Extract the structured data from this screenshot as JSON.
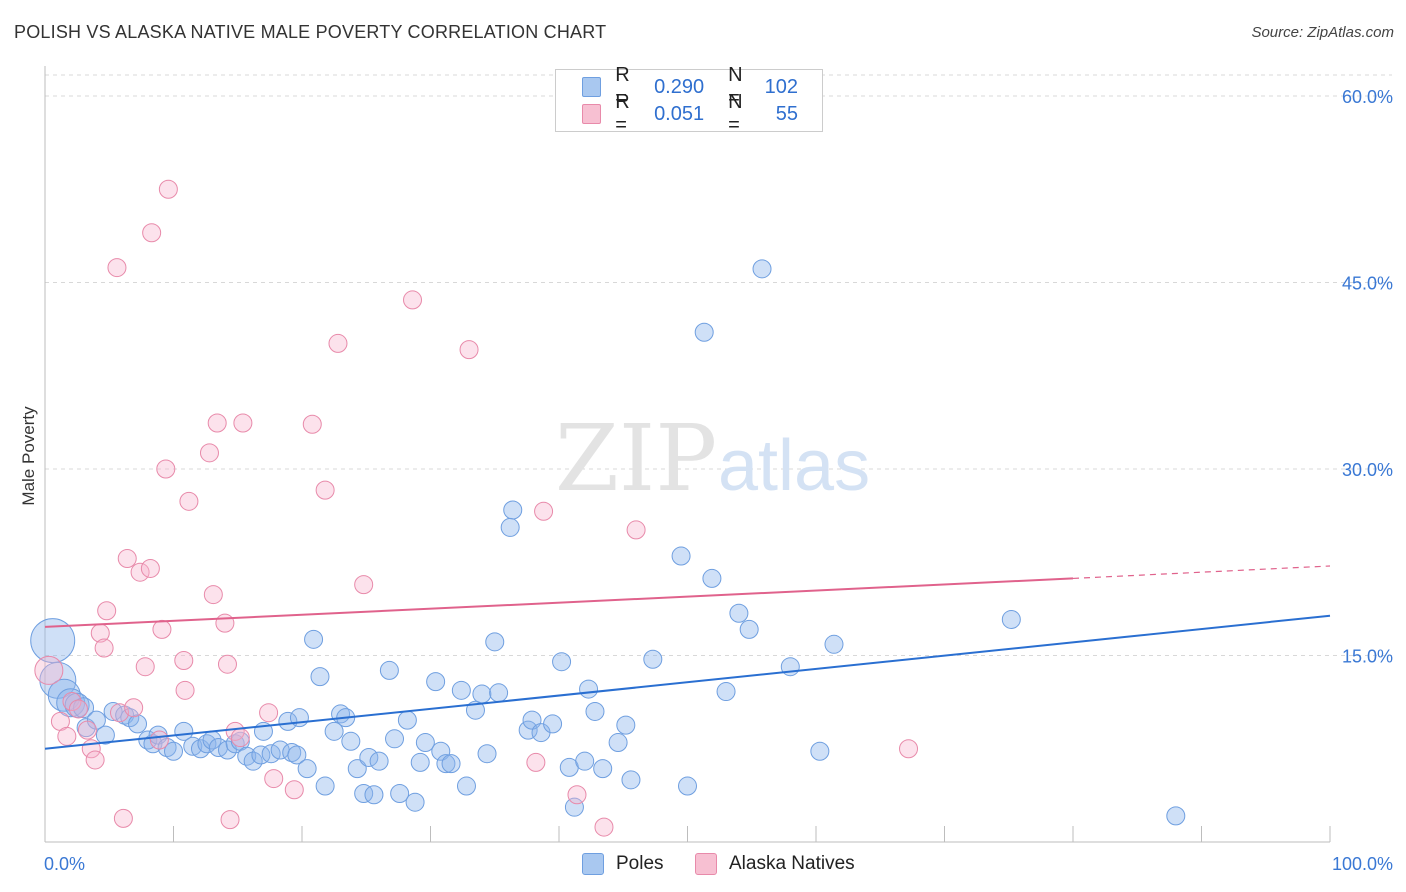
{
  "title": "POLISH VS ALASKA NATIVE MALE POVERTY CORRELATION CHART",
  "source": "Source: ZipAtlas.com",
  "watermark": {
    "zip": "ZIP",
    "atlas": "atlas"
  },
  "legend": {
    "rows": [
      {
        "r_label": "R =",
        "r_value": "0.290",
        "n_label": "N =",
        "n_value": "102",
        "color": "#a9c8f0",
        "border": "#6f9fe0"
      },
      {
        "r_label": "R =",
        "r_value": "0.051",
        "n_label": "N =",
        "n_value": "55",
        "color": "#f7c0d2",
        "border": "#e88aaa"
      }
    ]
  },
  "bottom_legend": [
    {
      "label": "Poles",
      "color": "#a9c8f0",
      "border": "#6f9fe0"
    },
    {
      "label": "Alaska Natives",
      "color": "#f7c0d2",
      "border": "#e88aaa"
    }
  ],
  "chart_data": {
    "type": "scatter",
    "title": "POLISH VS ALASKA NATIVE MALE POVERTY CORRELATION CHART",
    "xlabel": "",
    "ylabel": "Male Poverty",
    "xlim": [
      0,
      100
    ],
    "ylim": [
      0,
      60
    ],
    "x_tick_labels": [
      "0.0%",
      "100.0%"
    ],
    "y_ticks": [
      15,
      30,
      45,
      60
    ],
    "y_tick_labels": [
      "15.0%",
      "30.0%",
      "45.0%",
      "60.0%"
    ],
    "grid": true,
    "legend_position": "top-center",
    "series": [
      {
        "name": "Poles",
        "color": "#7aa8e8",
        "trend": {
          "x": [
            0,
            100
          ],
          "y": [
            7.5,
            18.2
          ],
          "color": "#2a6fd1"
        },
        "points": [
          {
            "x": 0.6,
            "y": 16.2,
            "s": 22
          },
          {
            "x": 1.0,
            "y": 13.0,
            "s": 18
          },
          {
            "x": 1.5,
            "y": 11.8,
            "s": 16
          },
          {
            "x": 2.0,
            "y": 11.2,
            "s": 14
          },
          {
            "x": 2.5,
            "y": 11.0,
            "s": 12
          },
          {
            "x": 3.0,
            "y": 10.8,
            "s": 10
          },
          {
            "x": 3.2,
            "y": 9.2,
            "s": 9
          },
          {
            "x": 4.0,
            "y": 9.8,
            "s": 9
          },
          {
            "x": 4.7,
            "y": 8.6,
            "s": 9
          },
          {
            "x": 5.3,
            "y": 10.5,
            "s": 9
          },
          {
            "x": 6.2,
            "y": 10.2,
            "s": 9
          },
          {
            "x": 6.6,
            "y": 10.0,
            "s": 9
          },
          {
            "x": 7.2,
            "y": 9.5,
            "s": 9
          },
          {
            "x": 8.0,
            "y": 8.2,
            "s": 9
          },
          {
            "x": 8.4,
            "y": 7.9,
            "s": 9
          },
          {
            "x": 8.8,
            "y": 8.6,
            "s": 9
          },
          {
            "x": 9.5,
            "y": 7.6,
            "s": 9
          },
          {
            "x": 10.0,
            "y": 7.3,
            "s": 9
          },
          {
            "x": 10.8,
            "y": 8.9,
            "s": 9
          },
          {
            "x": 11.5,
            "y": 7.7,
            "s": 9
          },
          {
            "x": 12.1,
            "y": 7.5,
            "s": 9
          },
          {
            "x": 12.6,
            "y": 7.9,
            "s": 9
          },
          {
            "x": 13.0,
            "y": 8.2,
            "s": 9
          },
          {
            "x": 13.5,
            "y": 7.6,
            "s": 9
          },
          {
            "x": 14.2,
            "y": 7.4,
            "s": 9
          },
          {
            "x": 14.8,
            "y": 7.9,
            "s": 9
          },
          {
            "x": 15.2,
            "y": 8.1,
            "s": 9
          },
          {
            "x": 15.7,
            "y": 6.9,
            "s": 9
          },
          {
            "x": 16.2,
            "y": 6.5,
            "s": 9
          },
          {
            "x": 16.8,
            "y": 7.0,
            "s": 9
          },
          {
            "x": 17.0,
            "y": 8.9,
            "s": 9
          },
          {
            "x": 17.6,
            "y": 7.1,
            "s": 9
          },
          {
            "x": 18.3,
            "y": 7.4,
            "s": 9
          },
          {
            "x": 18.9,
            "y": 9.7,
            "s": 9
          },
          {
            "x": 19.2,
            "y": 7.2,
            "s": 9
          },
          {
            "x": 19.6,
            "y": 7.0,
            "s": 9
          },
          {
            "x": 19.8,
            "y": 10.0,
            "s": 9
          },
          {
            "x": 20.4,
            "y": 5.9,
            "s": 9
          },
          {
            "x": 20.9,
            "y": 16.3,
            "s": 9
          },
          {
            "x": 21.4,
            "y": 13.3,
            "s": 9
          },
          {
            "x": 21.8,
            "y": 4.5,
            "s": 9
          },
          {
            "x": 22.5,
            "y": 8.9,
            "s": 9
          },
          {
            "x": 23.0,
            "y": 10.3,
            "s": 9
          },
          {
            "x": 23.4,
            "y": 10.0,
            "s": 9
          },
          {
            "x": 23.8,
            "y": 8.1,
            "s": 9
          },
          {
            "x": 24.3,
            "y": 5.9,
            "s": 9
          },
          {
            "x": 24.8,
            "y": 3.9,
            "s": 9
          },
          {
            "x": 25.2,
            "y": 6.8,
            "s": 9
          },
          {
            "x": 25.6,
            "y": 3.8,
            "s": 9
          },
          {
            "x": 26.0,
            "y": 6.5,
            "s": 9
          },
          {
            "x": 26.8,
            "y": 13.8,
            "s": 9
          },
          {
            "x": 27.2,
            "y": 8.3,
            "s": 9
          },
          {
            "x": 27.6,
            "y": 3.9,
            "s": 9
          },
          {
            "x": 28.2,
            "y": 9.8,
            "s": 9
          },
          {
            "x": 28.8,
            "y": 3.2,
            "s": 9
          },
          {
            "x": 29.2,
            "y": 6.4,
            "s": 9
          },
          {
            "x": 29.6,
            "y": 8.0,
            "s": 9
          },
          {
            "x": 30.4,
            "y": 12.9,
            "s": 9
          },
          {
            "x": 30.8,
            "y": 7.3,
            "s": 9
          },
          {
            "x": 31.2,
            "y": 6.3,
            "s": 9
          },
          {
            "x": 31.6,
            "y": 6.3,
            "s": 9
          },
          {
            "x": 32.4,
            "y": 12.2,
            "s": 9
          },
          {
            "x": 32.8,
            "y": 4.5,
            "s": 9
          },
          {
            "x": 33.5,
            "y": 10.6,
            "s": 9
          },
          {
            "x": 34.0,
            "y": 11.9,
            "s": 9
          },
          {
            "x": 34.4,
            "y": 7.1,
            "s": 9
          },
          {
            "x": 35.0,
            "y": 16.1,
            "s": 9
          },
          {
            "x": 35.3,
            "y": 12.0,
            "s": 9
          },
          {
            "x": 36.2,
            "y": 25.3,
            "s": 9
          },
          {
            "x": 36.4,
            "y": 26.7,
            "s": 9
          },
          {
            "x": 37.6,
            "y": 9.0,
            "s": 9
          },
          {
            "x": 37.9,
            "y": 9.8,
            "s": 9
          },
          {
            "x": 38.6,
            "y": 8.8,
            "s": 9
          },
          {
            "x": 39.5,
            "y": 9.5,
            "s": 9
          },
          {
            "x": 40.2,
            "y": 14.5,
            "s": 9
          },
          {
            "x": 40.8,
            "y": 6.0,
            "s": 9
          },
          {
            "x": 41.2,
            "y": 2.8,
            "s": 9
          },
          {
            "x": 42.0,
            "y": 6.5,
            "s": 9
          },
          {
            "x": 42.3,
            "y": 12.3,
            "s": 9
          },
          {
            "x": 42.8,
            "y": 10.5,
            "s": 9
          },
          {
            "x": 43.4,
            "y": 5.9,
            "s": 9
          },
          {
            "x": 44.6,
            "y": 8.0,
            "s": 9
          },
          {
            "x": 45.2,
            "y": 9.4,
            "s": 9
          },
          {
            "x": 45.6,
            "y": 5.0,
            "s": 9
          },
          {
            "x": 47.3,
            "y": 14.7,
            "s": 9
          },
          {
            "x": 49.5,
            "y": 23.0,
            "s": 9
          },
          {
            "x": 50.0,
            "y": 4.5,
            "s": 9
          },
          {
            "x": 51.3,
            "y": 41.0,
            "s": 9
          },
          {
            "x": 51.9,
            "y": 21.2,
            "s": 9
          },
          {
            "x": 53.0,
            "y": 12.1,
            "s": 9
          },
          {
            "x": 54.0,
            "y": 18.4,
            "s": 9
          },
          {
            "x": 54.8,
            "y": 17.1,
            "s": 9
          },
          {
            "x": 55.8,
            "y": 46.1,
            "s": 9
          },
          {
            "x": 58.0,
            "y": 14.1,
            "s": 9
          },
          {
            "x": 60.3,
            "y": 7.3,
            "s": 9
          },
          {
            "x": 61.4,
            "y": 15.9,
            "s": 9
          },
          {
            "x": 75.2,
            "y": 17.9,
            "s": 9
          },
          {
            "x": 88.0,
            "y": 2.1,
            "s": 9
          }
        ]
      },
      {
        "name": "Alaska Natives",
        "color": "#f0a0bc",
        "trend": {
          "x": [
            0,
            80,
            100
          ],
          "y": [
            17.3,
            21.2,
            22.2
          ],
          "color": "#e0628c"
        },
        "points": [
          {
            "x": 0.3,
            "y": 13.8,
            "s": 14
          },
          {
            "x": 1.2,
            "y": 9.7,
            "s": 9
          },
          {
            "x": 1.7,
            "y": 8.5,
            "s": 9
          },
          {
            "x": 2.1,
            "y": 11.3,
            "s": 9
          },
          {
            "x": 2.6,
            "y": 10.7,
            "s": 9
          },
          {
            "x": 3.3,
            "y": 9.0,
            "s": 9
          },
          {
            "x": 3.6,
            "y": 7.5,
            "s": 9
          },
          {
            "x": 3.9,
            "y": 6.6,
            "s": 9
          },
          {
            "x": 4.3,
            "y": 16.8,
            "s": 9
          },
          {
            "x": 4.6,
            "y": 15.6,
            "s": 9
          },
          {
            "x": 4.8,
            "y": 18.6,
            "s": 9
          },
          {
            "x": 5.6,
            "y": 46.2,
            "s": 9
          },
          {
            "x": 5.8,
            "y": 10.4,
            "s": 9
          },
          {
            "x": 6.1,
            "y": 1.9,
            "s": 9
          },
          {
            "x": 6.4,
            "y": 22.8,
            "s": 9
          },
          {
            "x": 6.9,
            "y": 10.8,
            "s": 9
          },
          {
            "x": 7.4,
            "y": 21.7,
            "s": 9
          },
          {
            "x": 7.8,
            "y": 14.1,
            "s": 9
          },
          {
            "x": 8.2,
            "y": 22.0,
            "s": 9
          },
          {
            "x": 8.3,
            "y": 49.0,
            "s": 9
          },
          {
            "x": 8.9,
            "y": 8.2,
            "s": 9
          },
          {
            "x": 9.1,
            "y": 17.1,
            "s": 9
          },
          {
            "x": 9.4,
            "y": 30.0,
            "s": 9
          },
          {
            "x": 9.6,
            "y": 52.5,
            "s": 9
          },
          {
            "x": 10.8,
            "y": 14.6,
            "s": 9
          },
          {
            "x": 10.9,
            "y": 12.2,
            "s": 9
          },
          {
            "x": 11.2,
            "y": 27.4,
            "s": 9
          },
          {
            "x": 12.8,
            "y": 31.3,
            "s": 9
          },
          {
            "x": 13.1,
            "y": 19.9,
            "s": 9
          },
          {
            "x": 13.4,
            "y": 33.7,
            "s": 9
          },
          {
            "x": 14.0,
            "y": 17.6,
            "s": 9
          },
          {
            "x": 14.2,
            "y": 14.3,
            "s": 9
          },
          {
            "x": 14.4,
            "y": 1.8,
            "s": 9
          },
          {
            "x": 14.8,
            "y": 8.9,
            "s": 9
          },
          {
            "x": 15.2,
            "y": 8.4,
            "s": 9
          },
          {
            "x": 15.4,
            "y": 33.7,
            "s": 9
          },
          {
            "x": 17.4,
            "y": 10.4,
            "s": 9
          },
          {
            "x": 17.8,
            "y": 5.1,
            "s": 9
          },
          {
            "x": 19.4,
            "y": 4.2,
            "s": 9
          },
          {
            "x": 20.8,
            "y": 33.6,
            "s": 9
          },
          {
            "x": 21.8,
            "y": 28.3,
            "s": 9
          },
          {
            "x": 22.8,
            "y": 40.1,
            "s": 9
          },
          {
            "x": 24.8,
            "y": 20.7,
            "s": 9
          },
          {
            "x": 28.6,
            "y": 43.6,
            "s": 9
          },
          {
            "x": 33.0,
            "y": 39.6,
            "s": 9
          },
          {
            "x": 38.2,
            "y": 6.4,
            "s": 9
          },
          {
            "x": 38.8,
            "y": 26.6,
            "s": 9
          },
          {
            "x": 41.4,
            "y": 3.8,
            "s": 9
          },
          {
            "x": 43.5,
            "y": 1.2,
            "s": 9
          },
          {
            "x": 46.0,
            "y": 25.1,
            "s": 9
          },
          {
            "x": 67.2,
            "y": 7.5,
            "s": 9
          }
        ]
      }
    ]
  }
}
